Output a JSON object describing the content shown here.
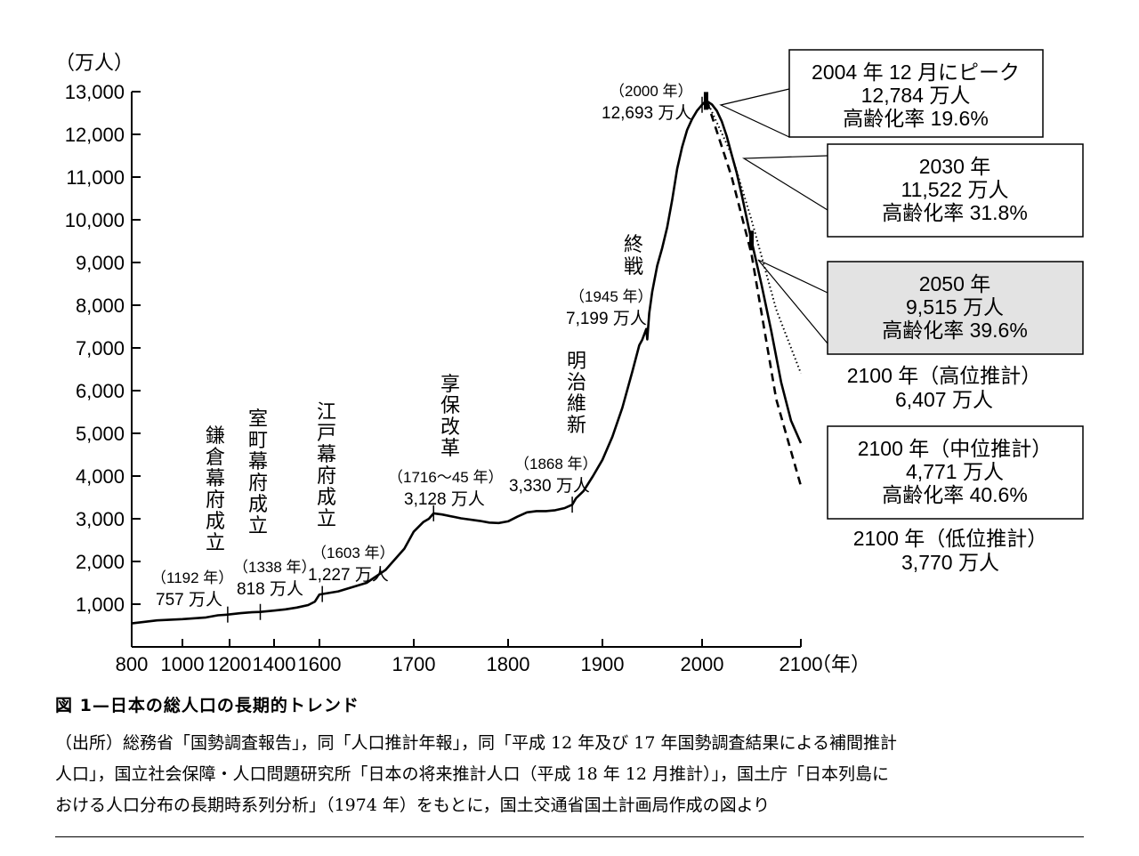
{
  "chart_data": {
    "type": "line",
    "unit_label": "（万人）",
    "x_unit_label": "（年）",
    "yticks": [
      "13,000",
      "12,000",
      "11,000",
      "10,000",
      "9,000",
      "8,000",
      "7,000",
      "6,000",
      "5,000",
      "4,000",
      "3,000",
      "2,000",
      "1,000"
    ],
    "ytick_values": [
      13000,
      12000,
      11000,
      10000,
      9000,
      8000,
      7000,
      6000,
      5000,
      4000,
      3000,
      2000,
      1000
    ],
    "xticks": [
      "800",
      "1000",
      "1200",
      "1400",
      "1600",
      "1700",
      "1800",
      "1900",
      "2000",
      "2100"
    ],
    "xtick_values": [
      800,
      1000,
      1200,
      1400,
      1600,
      1700,
      1800,
      1900,
      2000,
      2100
    ],
    "historical": [
      [
        800,
        551
      ],
      [
        900,
        620
      ],
      [
        1000,
        650
      ],
      [
        1100,
        690
      ],
      [
        1150,
        740
      ],
      [
        1192,
        757
      ],
      [
        1250,
        790
      ],
      [
        1300,
        810
      ],
      [
        1338,
        818
      ],
      [
        1400,
        850
      ],
      [
        1450,
        880
      ],
      [
        1500,
        920
      ],
      [
        1550,
        980
      ],
      [
        1580,
        1060
      ],
      [
        1600,
        1227
      ],
      [
        1620,
        1300
      ],
      [
        1650,
        1500
      ],
      [
        1670,
        1800
      ],
      [
        1690,
        2300
      ],
      [
        1700,
        2700
      ],
      [
        1710,
        2920
      ],
      [
        1716,
        3000
      ],
      [
        1721,
        3128
      ],
      [
        1730,
        3100
      ],
      [
        1750,
        3010
      ],
      [
        1770,
        2950
      ],
      [
        1780,
        2910
      ],
      [
        1790,
        2900
      ],
      [
        1800,
        2940
      ],
      [
        1810,
        3050
      ],
      [
        1820,
        3150
      ],
      [
        1830,
        3180
      ],
      [
        1840,
        3180
      ],
      [
        1850,
        3200
      ],
      [
        1860,
        3250
      ],
      [
        1868,
        3330
      ],
      [
        1872,
        3480
      ],
      [
        1880,
        3650
      ],
      [
        1890,
        4000
      ],
      [
        1900,
        4380
      ],
      [
        1910,
        4920
      ],
      [
        1920,
        5600
      ],
      [
        1930,
        6445
      ],
      [
        1937,
        7063
      ],
      [
        1940,
        7193
      ],
      [
        1944,
        7443
      ],
      [
        1945,
        7199
      ],
      [
        1947,
        7810
      ],
      [
        1950,
        8320
      ],
      [
        1955,
        8928
      ],
      [
        1960,
        9342
      ],
      [
        1965,
        9828
      ],
      [
        1970,
        10467
      ],
      [
        1975,
        11194
      ],
      [
        1980,
        11706
      ],
      [
        1985,
        12105
      ],
      [
        1990,
        12361
      ],
      [
        1995,
        12557
      ],
      [
        2000,
        12693
      ],
      [
        2004,
        12784
      ],
      [
        2005,
        12777
      ]
    ],
    "series": [
      {
        "name": "高位推計",
        "style": "dotted",
        "points": [
          [
            2005,
            12777
          ],
          [
            2030,
            11522
          ],
          [
            2050,
            10000
          ],
          [
            2075,
            7900
          ],
          [
            2100,
            6407
          ]
        ]
      },
      {
        "name": "中位推計",
        "style": "solid",
        "points": [
          [
            2005,
            12777
          ],
          [
            2010,
            12700
          ],
          [
            2015,
            12550
          ],
          [
            2020,
            12300
          ],
          [
            2025,
            11950
          ],
          [
            2030,
            11522
          ],
          [
            2035,
            11100
          ],
          [
            2040,
            10600
          ],
          [
            2045,
            10050
          ],
          [
            2050,
            9515
          ],
          [
            2060,
            8500
          ],
          [
            2070,
            7400
          ],
          [
            2080,
            6200
          ],
          [
            2090,
            5300
          ],
          [
            2100,
            4771
          ]
        ]
      },
      {
        "name": "低位推計",
        "style": "dashed",
        "points": [
          [
            2005,
            12777
          ],
          [
            2030,
            11000
          ],
          [
            2050,
            9200
          ],
          [
            2075,
            5800
          ],
          [
            2100,
            3770
          ]
        ]
      }
    ],
    "annotations": {
      "kamakura": {
        "label": [
          "鎌",
          "倉",
          "幕",
          "府",
          "成",
          "立"
        ],
        "year": "（1192 年）",
        "value": "757 万人"
      },
      "muromachi": {
        "label": [
          "室",
          "町",
          "幕",
          "府",
          "成",
          "立"
        ],
        "year": "（1338 年）",
        "value": "818 万人"
      },
      "edo": {
        "label": [
          "江",
          "戸",
          "幕",
          "府",
          "成",
          "立"
        ],
        "year": "（1603 年）",
        "value": "1,227 万人"
      },
      "kyoho": {
        "label": [
          "享",
          "保",
          "改",
          "革"
        ],
        "year": "（1716〜45 年）",
        "value": "3,128 万人"
      },
      "meiji": {
        "label": [
          "明",
          "治",
          "維",
          "新"
        ],
        "year": "（1868 年）",
        "value": "3,330 万人"
      },
      "shusen": {
        "label": [
          "終",
          "戦"
        ],
        "year": "（1945 年）",
        "value": "7,199 万人"
      },
      "y2000": {
        "year": "（2000 年）",
        "value": "12,693 万人"
      }
    },
    "callouts": {
      "peak": {
        "line1": "2004 年 12 月にピーク",
        "line2": "12,784 万人",
        "line3": "高齢化率 19.6%"
      },
      "y2030": {
        "line1": "2030 年",
        "line2": "11,522 万人",
        "line3": "高齢化率 31.8%"
      },
      "y2050": {
        "line1": "2050 年",
        "line2": "9,515 万人",
        "line3": "高齢化率 39.6%"
      },
      "high2100": {
        "line1": "2100 年（高位推計）",
        "line2": "6,407 万人"
      },
      "mid2100": {
        "line1": "2100 年（中位推計）",
        "line2": "4,771 万人",
        "line3": "高齢化率 40.6%"
      },
      "low2100": {
        "line1": "2100 年（低位推計）",
        "line2": "3,770 万人"
      }
    },
    "colors": {
      "ink": "#000000",
      "highlight_box": "#e3e3e3",
      "paper": "#ffffff"
    }
  },
  "caption": {
    "title": "図 1—日本の総人口の長期的トレンド",
    "source_line1": "（出所）総務省「国勢調査報告」，同「人口推計年報」，同「平成 12 年及び 17 年国勢調査結果による補間推計",
    "source_line2": "人口」，国立社会保障・人口問題研究所「日本の将来推計人口（平成 18 年 12 月推計）」，国土庁「日本列島に",
    "source_line3": "おける人口分布の長期時系列分析」（1974 年）をもとに，国土交通省国土計画局作成の図より"
  }
}
